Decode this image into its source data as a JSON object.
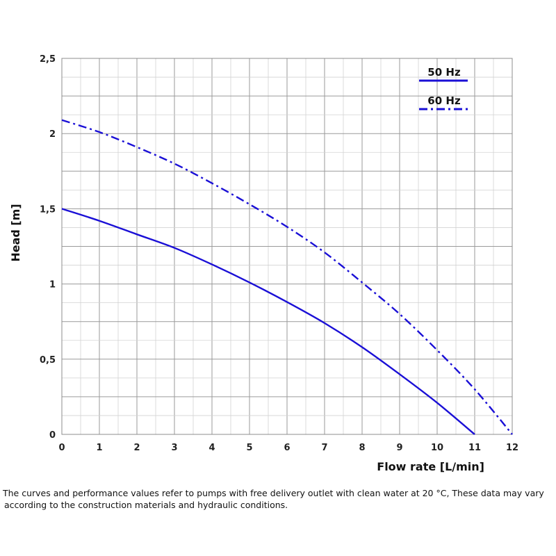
{
  "chart_data": {
    "type": "line",
    "title": "",
    "xlabel": "Flow rate [L/min]",
    "ylabel": "Head [m]",
    "xlim": [
      0,
      12
    ],
    "ylim": [
      0,
      2.5
    ],
    "x_ticks": [
      "0",
      "1",
      "2",
      "3",
      "4",
      "5",
      "6",
      "7",
      "8",
      "9",
      "10",
      "11",
      "12"
    ],
    "y_ticks": [
      "0",
      "0,5",
      "1",
      "1,5",
      "2",
      "2,5"
    ],
    "grid": true,
    "legend_position": "top-right",
    "series": [
      {
        "name": "50 Hz",
        "style": "solid",
        "color": "#1a0fd6",
        "x": [
          0,
          1,
          2,
          3,
          4,
          5,
          6,
          7,
          8,
          9,
          10,
          11
        ],
        "y": [
          1.5,
          1.42,
          1.33,
          1.24,
          1.13,
          1.01,
          0.88,
          0.74,
          0.58,
          0.4,
          0.21,
          0.0
        ]
      },
      {
        "name": "60 Hz",
        "style": "dash-dot",
        "color": "#1a0fd6",
        "x": [
          0,
          1,
          2,
          3,
          4,
          5,
          6,
          7,
          8,
          9,
          10,
          11,
          12
        ],
        "y": [
          2.09,
          2.01,
          1.91,
          1.8,
          1.67,
          1.53,
          1.38,
          1.21,
          1.01,
          0.8,
          0.56,
          0.3,
          0.0
        ]
      }
    ]
  },
  "note": {
    "line1": "The curves and performance values refer to pumps with free delivery outlet with clean water at 20 °C, These data may vary",
    "line2": "according to the construction materials and hydraulic conditions."
  }
}
